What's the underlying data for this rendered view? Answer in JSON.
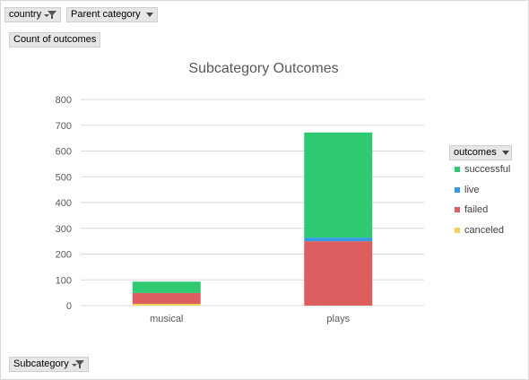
{
  "filters": {
    "country_label": "country",
    "parent_category_label": "Parent category",
    "values_label": "Count of outcomes",
    "subcategory_label": "Subcategory"
  },
  "legend": {
    "title": "outcomes"
  },
  "colors": {
    "successful": "#2ec971",
    "live": "#3399e6",
    "failed": "#dd5e5e",
    "canceled": "#f2d25a",
    "gridline": "#d9d9d9",
    "axis_text": "#595959"
  },
  "chart_data": {
    "type": "bar",
    "stacked": true,
    "title": "Subcategory Outcomes",
    "xlabel": "",
    "ylabel": "",
    "categories": [
      "musical",
      "plays"
    ],
    "series": [
      {
        "name": "canceled",
        "values": [
          7,
          0
        ]
      },
      {
        "name": "failed",
        "values": [
          42,
          250
        ]
      },
      {
        "name": "live",
        "values": [
          0,
          14
        ]
      },
      {
        "name": "successful",
        "values": [
          44,
          408
        ]
      }
    ],
    "ylim": [
      0,
      800
    ],
    "yticks": [
      0,
      100,
      200,
      300,
      400,
      500,
      600,
      700,
      800
    ],
    "grid": true,
    "legend_position": "right"
  }
}
